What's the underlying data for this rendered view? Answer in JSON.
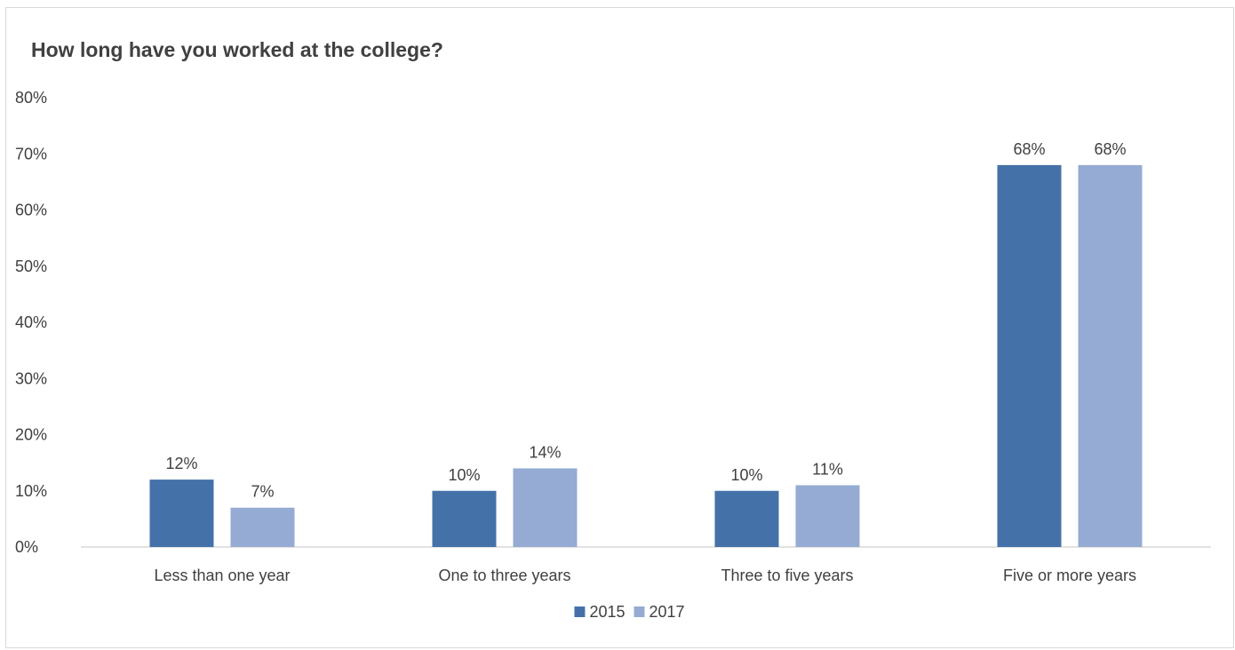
{
  "chart_data": {
    "type": "bar",
    "title": "How long have you worked at the college?",
    "xlabel": "",
    "ylabel": "",
    "categories": [
      "Less than one year",
      "One to three years",
      "Three to five years",
      "Five or more years"
    ],
    "series": [
      {
        "name": "2015",
        "values": [
          12,
          10,
          10,
          68
        ],
        "labels": [
          "12%",
          "10%",
          "10%",
          "68%"
        ],
        "color": "#4472a8"
      },
      {
        "name": "2017",
        "values": [
          7,
          14,
          11,
          68
        ],
        "labels": [
          "7%",
          "14%",
          "11%",
          "68%"
        ],
        "color": "#95abd3"
      }
    ],
    "ylim": [
      0,
      80
    ],
    "yticks": [
      0,
      10,
      20,
      30,
      40,
      50,
      60,
      70,
      80
    ],
    "ytick_labels": [
      "0%",
      "10%",
      "20%",
      "30%",
      "40%",
      "50%",
      "60%",
      "70%",
      "80%"
    ],
    "grid": false,
    "legend_position": "bottom"
  },
  "colors": {
    "axis": "#d9d9d9",
    "text": "#404040",
    "border": "#d9d9d9"
  }
}
